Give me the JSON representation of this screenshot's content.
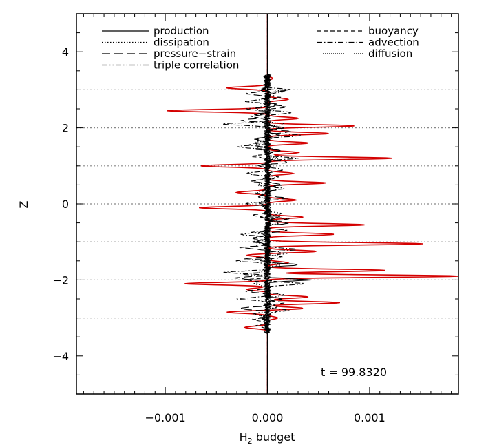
{
  "chart_data": {
    "type": "line",
    "xlabel_main": "H",
    "xlabel_sub": "2",
    "xlabel_rest": " budget",
    "ylabel": "Z",
    "xlim": [
      -0.00187,
      0.00187
    ],
    "ylim": [
      -5,
      5
    ],
    "x_ticks": [
      {
        "value": -0.001,
        "label": "−0.001"
      },
      {
        "value": 0.0,
        "label": "0.000"
      },
      {
        "value": 0.001,
        "label": "0.001"
      }
    ],
    "y_ticks": [
      {
        "value": 4,
        "label": "4"
      },
      {
        "value": 2,
        "label": "2"
      },
      {
        "value": 0,
        "label": "0"
      },
      {
        "value": -2,
        "label": "−2"
      },
      {
        "value": -4,
        "label": "−4"
      }
    ],
    "horizontal_reference_lines": [
      3,
      2,
      1,
      0,
      -1,
      -2,
      -3
    ],
    "time_annotation": "t = 99.8320",
    "legend_left": [
      {
        "name": "production",
        "dash": "solid"
      },
      {
        "name": "dissipation",
        "dash": "dotted"
      },
      {
        "name": "pressure−strain",
        "dash": "longdash"
      },
      {
        "name": "triple correlation",
        "dash": "dashdotdot"
      }
    ],
    "legend_right": [
      {
        "name": "buoyancy",
        "dash": "dashed"
      },
      {
        "name": "advection",
        "dash": "dashdot"
      },
      {
        "name": "diffusion",
        "dash": "finedot"
      }
    ],
    "series": [
      {
        "name": "diffusion",
        "color": "#d40000",
        "peaks": [
          [
            3.3,
            5e-05
          ],
          [
            3.05,
            -0.0004
          ],
          [
            2.75,
            0.0002
          ],
          [
            2.45,
            -0.00098
          ],
          [
            2.25,
            0.0003
          ],
          [
            2.05,
            0.00085
          ],
          [
            1.85,
            0.0006
          ],
          [
            1.6,
            0.0004
          ],
          [
            1.35,
            0.0003
          ],
          [
            1.2,
            0.00122
          ],
          [
            1.0,
            -0.00065
          ],
          [
            0.8,
            0.00025
          ],
          [
            0.55,
            0.00057
          ],
          [
            0.3,
            -0.0003
          ],
          [
            0.1,
            0.00028
          ],
          [
            -0.1,
            -0.00067
          ],
          [
            -0.35,
            0.00035
          ],
          [
            -0.55,
            0.00095
          ],
          [
            -0.8,
            0.00065
          ],
          [
            -1.05,
            0.00152
          ],
          [
            -1.25,
            0.00048
          ],
          [
            -1.35,
            -0.0002
          ],
          [
            -1.55,
            0.0002
          ],
          [
            -1.75,
            0.00115
          ],
          [
            -1.9,
            0.00187
          ],
          [
            -2.1,
            -0.00081
          ],
          [
            -2.25,
            -0.0002
          ],
          [
            -2.45,
            0.0004
          ],
          [
            -2.6,
            0.00071
          ],
          [
            -2.75,
            0.00035
          ],
          [
            -2.85,
            -0.0004
          ],
          [
            -3.0,
            0.0001
          ],
          [
            -3.25,
            -0.00022
          ]
        ]
      },
      {
        "name": "production",
        "color": "#000000",
        "peaks": [
          [
            3.0,
            -4e-05
          ],
          [
            2.6,
            0.0001
          ],
          [
            2.35,
            -0.0001
          ],
          [
            2.0,
            0.00014
          ],
          [
            1.7,
            -0.00012
          ],
          [
            1.4,
            0.0001
          ],
          [
            1.0,
            -8e-05
          ],
          [
            0.5,
            0.00012
          ],
          [
            0.0,
            -8e-05
          ],
          [
            -0.5,
            0.0002
          ],
          [
            -1.0,
            -0.00012
          ],
          [
            -1.6,
            0.00028
          ],
          [
            -2.0,
            0.0004
          ],
          [
            -2.5,
            0.00015
          ],
          [
            -3.0,
            -5e-05
          ]
        ]
      },
      {
        "name": "advection",
        "color": "#000000",
        "peaks": [
          [
            3.0,
            0.0002
          ],
          [
            2.7,
            -0.0002
          ],
          [
            2.4,
            0.00025
          ],
          [
            2.1,
            -0.00042
          ],
          [
            1.8,
            0.00035
          ],
          [
            1.5,
            -0.0003
          ],
          [
            1.2,
            0.00028
          ],
          [
            0.8,
            -0.0002
          ],
          [
            0.4,
            0.00015
          ],
          [
            0.0,
            -0.0002
          ],
          [
            -0.4,
            0.0002
          ],
          [
            -0.8,
            -0.00025
          ],
          [
            -1.2,
            0.0003
          ],
          [
            -1.5,
            -0.0003
          ],
          [
            -1.8,
            -0.0004
          ],
          [
            -2.1,
            0.00035
          ],
          [
            -2.5,
            -0.0003
          ],
          [
            -2.8,
            0.0002
          ],
          [
            -3.2,
            -8e-05
          ]
        ]
      },
      {
        "name": "pressure−strain",
        "color": "#000000",
        "peaks": [
          [
            2.9,
            -0.0002
          ],
          [
            2.55,
            0.00018
          ],
          [
            2.2,
            -0.00025
          ],
          [
            1.9,
            0.00022
          ],
          [
            1.55,
            -0.00018
          ],
          [
            1.1,
            0.0002
          ],
          [
            0.6,
            -0.00015
          ],
          [
            0.15,
            0.00018
          ],
          [
            -0.3,
            -0.00015
          ],
          [
            -0.7,
            0.0002
          ],
          [
            -1.15,
            -0.00025
          ],
          [
            -1.45,
            -0.00022
          ],
          [
            -1.95,
            -0.00032
          ],
          [
            -2.3,
            -0.0002
          ],
          [
            -2.75,
            -0.00028
          ]
        ]
      },
      {
        "name": "buoyancy",
        "color": "#000000",
        "peaks": [
          [
            2.8,
            0.00012
          ],
          [
            2.3,
            -0.00015
          ],
          [
            1.8,
            0.00012
          ],
          [
            1.25,
            -0.00013
          ],
          [
            0.7,
            0.0001
          ],
          [
            0.2,
            -0.0001
          ],
          [
            -0.35,
            0.00012
          ],
          [
            -0.9,
            -0.00015
          ],
          [
            -1.4,
            0.00015
          ],
          [
            -2.0,
            -0.0002
          ],
          [
            -2.6,
            0.00015
          ],
          [
            -3.05,
            -0.00012
          ]
        ]
      },
      {
        "name": "dissipation",
        "color": "#000000",
        "peaks": [
          [
            2.5,
            -0.0001
          ],
          [
            2.1,
            0.00015
          ],
          [
            1.6,
            -0.00012
          ],
          [
            1.2,
            0.0001
          ],
          [
            0.5,
            -8e-05
          ],
          [
            -0.5,
            0.0001
          ],
          [
            -1.0,
            -0.00012
          ],
          [
            -1.6,
            0.00012
          ],
          [
            -2.1,
            -0.00015
          ],
          [
            -2.7,
            0.0001
          ]
        ]
      },
      {
        "name": "triple correlation",
        "color": "#000000",
        "peaks": [
          [
            2.95,
            0.00015
          ],
          [
            2.5,
            -0.00018
          ],
          [
            2.0,
            0.00012
          ],
          [
            1.45,
            -0.00012
          ],
          [
            0.9,
            0.00015
          ],
          [
            0.3,
            -0.0001
          ],
          [
            -0.25,
            0.00012
          ],
          [
            -0.75,
            -0.00014
          ],
          [
            -1.3,
            0.00018
          ],
          [
            -1.85,
            -0.00022
          ],
          [
            -2.4,
            0.00016
          ],
          [
            -2.9,
            -0.00012
          ]
        ]
      }
    ]
  }
}
